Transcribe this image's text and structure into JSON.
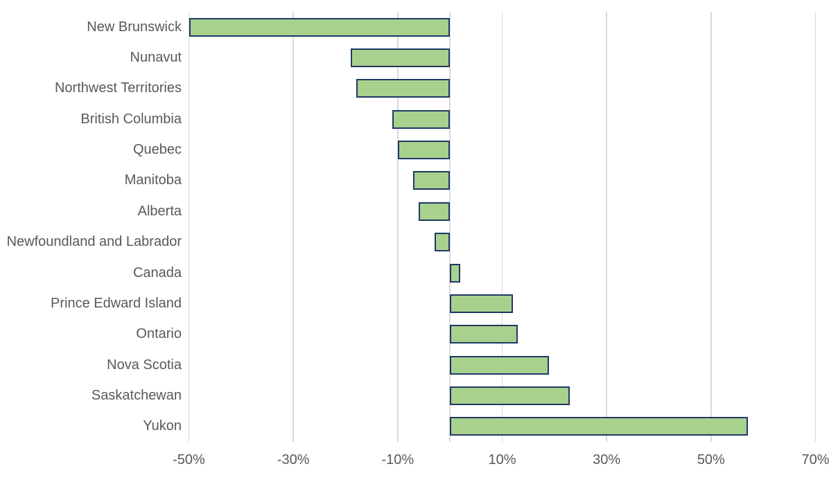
{
  "chart_data": {
    "type": "bar",
    "orientation": "horizontal",
    "title": "",
    "xlabel": "",
    "ylabel": "",
    "unit": "%",
    "categories": [
      "New Brunswick",
      "Nunavut",
      "Northwest Territories",
      "British Columbia",
      "Quebec",
      "Manitoba",
      "Alberta",
      "Newfoundland and Labrador",
      "Canada",
      "Prince Edward Island",
      "Ontario",
      "Nova Scotia",
      "Saskatchewan",
      "Yukon"
    ],
    "values": [
      -50,
      -19,
      -18,
      -11,
      -10,
      -7,
      -6,
      -3,
      2,
      12,
      13,
      19,
      23,
      57
    ],
    "xlim": [
      -50,
      70
    ],
    "xticks": [
      -50,
      -30,
      -10,
      10,
      30,
      50,
      70
    ],
    "xtick_labels": [
      "-50%",
      "-30%",
      "-10%",
      "10%",
      "30%",
      "50%",
      "70%"
    ],
    "grid": "vertical-major-gridlines",
    "zero_axis_line": true,
    "legend": "none",
    "colors": {
      "bar_fill": "#A9D18E",
      "bar_border": "#1F3864",
      "gridline": "#D9D9D9",
      "zero_line": "#D9D9D9",
      "label": "#595959",
      "background": "#FFFFFF"
    }
  }
}
